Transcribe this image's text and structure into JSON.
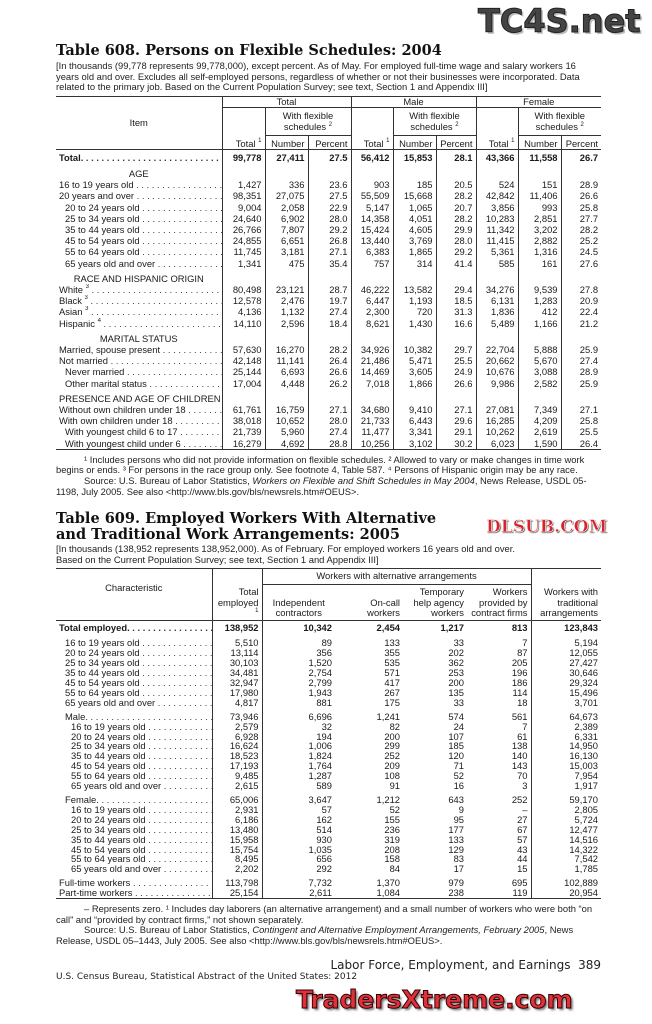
{
  "watermarks": {
    "top": "TC4S.net",
    "middle": "DLSUB.COM",
    "bottom": "TradersXtreme.com"
  },
  "table608": {
    "title": "Table 608. Persons on Flexible Schedules: 2004",
    "headnote": "[In thousands (99,778 represents 99,778,000), except percent. As of May. For employed full-time wage and salary workers 16 years old and over. Excludes all self-employed persons, regardless of whether or not their businesses were incorporated. Data related to the primary job. Based on the Current Population Survey;  see text, Section 1 and Appendix III]",
    "header": {
      "item": "Item",
      "groups": [
        "Total",
        "Male",
        "Female"
      ],
      "flex": "With flexible schedules",
      "flex_sup": "2",
      "total": "Total",
      "total_sup": "1",
      "number": "Number",
      "percent": "Percent"
    },
    "rows": [
      {
        "label": "Total.",
        "bold": true,
        "v": [
          "99,778",
          "27,411",
          "27.5",
          "56,412",
          "15,853",
          "28.1",
          "43,366",
          "11,558",
          "26.7"
        ]
      },
      {
        "heading": "AGE"
      },
      {
        "label": "16 to 19 years old",
        "v": [
          "1,427",
          "336",
          "23.6",
          "903",
          "185",
          "20.5",
          "524",
          "151",
          "28.9"
        ]
      },
      {
        "label": "20 years and over",
        "v": [
          "98,351",
          "27,075",
          "27.5",
          "55,509",
          "15,668",
          "28.2",
          "42,842",
          "11,406",
          "26.6"
        ]
      },
      {
        "label": "20 to 24 years old",
        "indent": 1,
        "v": [
          "9,004",
          "2,058",
          "22.9",
          "5,147",
          "1,065",
          "20.7",
          "3,856",
          "993",
          "25.8"
        ]
      },
      {
        "label": "25 to 34 years old",
        "indent": 1,
        "v": [
          "24,640",
          "6,902",
          "28.0",
          "14,358",
          "4,051",
          "28.2",
          "10,283",
          "2,851",
          "27.7"
        ]
      },
      {
        "label": "35 to 44 years old",
        "indent": 1,
        "v": [
          "26,766",
          "7,807",
          "29.2",
          "15,424",
          "4,605",
          "29.9",
          "11,342",
          "3,202",
          "28.2"
        ]
      },
      {
        "label": "45 to 54 years old",
        "indent": 1,
        "v": [
          "24,855",
          "6,651",
          "26.8",
          "13,440",
          "3,769",
          "28.0",
          "11,415",
          "2,882",
          "25.2"
        ]
      },
      {
        "label": "55 to 64 years old",
        "indent": 1,
        "v": [
          "11,745",
          "3,181",
          "27.1",
          "6,383",
          "1,865",
          "29.2",
          "5,361",
          "1,316",
          "24.5"
        ]
      },
      {
        "label": "65 years old and over",
        "indent": 1,
        "v": [
          "1,341",
          "475",
          "35.4",
          "757",
          "314",
          "41.4",
          "585",
          "161",
          "27.6"
        ]
      },
      {
        "heading": "RACE AND HISPANIC ORIGIN"
      },
      {
        "label": "White",
        "sup": "3",
        "v": [
          "80,498",
          "23,121",
          "28.7",
          "46,222",
          "13,582",
          "29.4",
          "34,276",
          "9,539",
          "27.8"
        ]
      },
      {
        "label": "Black",
        "sup": "3",
        "v": [
          "12,578",
          "2,476",
          "19.7",
          "6,447",
          "1,193",
          "18.5",
          "6,131",
          "1,283",
          "20.9"
        ]
      },
      {
        "label": "Asian",
        "sup": "3",
        "v": [
          "4,136",
          "1,132",
          "27.4",
          "2,300",
          "720",
          "31.3",
          "1,836",
          "412",
          "22.4"
        ]
      },
      {
        "label": "Hispanic",
        "sup": "4",
        "v": [
          "14,110",
          "2,596",
          "18.4",
          "8,621",
          "1,430",
          "16.6",
          "5,489",
          "1,166",
          "21.2"
        ]
      },
      {
        "heading": "MARITAL STATUS"
      },
      {
        "label": "Married, spouse present",
        "v": [
          "57,630",
          "16,270",
          "28.2",
          "34,926",
          "10,382",
          "29.7",
          "22,704",
          "5,888",
          "25.9"
        ]
      },
      {
        "label": "Not married",
        "v": [
          "42,148",
          "11,141",
          "26.4",
          "21,486",
          "5,471",
          "25.5",
          "20,662",
          "5,670",
          "27.4"
        ]
      },
      {
        "label": "Never married",
        "indent": 1,
        "v": [
          "25,144",
          "6,693",
          "26.6",
          "14,469",
          "3,605",
          "24.9",
          "10,676",
          "3,088",
          "28.9"
        ]
      },
      {
        "label": "Other marital status",
        "indent": 1,
        "v": [
          "17,004",
          "4,448",
          "26.2",
          "7,018",
          "1,866",
          "26.6",
          "9,986",
          "2,582",
          "25.9"
        ]
      },
      {
        "heading": "PRESENCE AND AGE OF CHILDREN"
      },
      {
        "label": "Without own children under 18",
        "v": [
          "61,761",
          "16,759",
          "27.1",
          "34,680",
          "9,410",
          "27.1",
          "27,081",
          "7,349",
          "27.1"
        ]
      },
      {
        "label": "With own children under 18",
        "v": [
          "38,018",
          "10,652",
          "28.0",
          "21,733",
          "6,443",
          "29.6",
          "16,285",
          "4,209",
          "25.8"
        ]
      },
      {
        "label": "With youngest child 6 to 17",
        "indent": 1,
        "v": [
          "21,739",
          "5,960",
          "27.4",
          "11,477",
          "3,341",
          "29.1",
          "10,262",
          "2,619",
          "25.5"
        ]
      },
      {
        "label": "With youngest child under 6",
        "indent": 1,
        "v": [
          "16,279",
          "4,692",
          "28.8",
          "10,256",
          "3,102",
          "30.2",
          "6,023",
          "1,590",
          "26.4"
        ]
      }
    ],
    "footnote": "¹ Includes persons who did not provide information on flexible schedules. ² Allowed to vary or make changes in time work begins or ends. ³ For persons in the race group only. See footnote 4, Table 587. ⁴ Persons of Hispanic origin may be any race.",
    "source_prefix": "Source: U.S. Bureau of Labor Statistics, ",
    "source_title": "Workers on Flexible and Shift Schedules in May 2004",
    "source_suffix": ", News Release, USDL 05-1198, July 2005. See also <http://www.bls.gov/bls/newsrels.htm#OEUS>."
  },
  "table609": {
    "title": "Table 609. Employed Workers With Alternative and Traditional Work Arrangements: 2005",
    "headnote": "[In thousands (138,952 represents 138,952,000). As of February. For employed workers 16 years old and over. Based on the Current Population Survey; see text, Section 1 and Appendix III]",
    "header": {
      "characteristic": "Characteristic",
      "alt_group": "Workers with alternative arrangements",
      "total": "Total employed",
      "total_sup": "1",
      "independent": "Independent contractors",
      "oncall": "On-call workers",
      "temp": "Temporary help agency workers",
      "contract": "Workers provided by contract firms",
      "traditional": "Workers with traditional arrangements"
    },
    "rows": [
      {
        "label": "Total employed.",
        "bold": true,
        "v": [
          "138,952",
          "10,342",
          "2,454",
          "1,217",
          "813",
          "123,843"
        ]
      },
      {
        "spacer": true
      },
      {
        "label": "16 to 19 years old",
        "indent": 1,
        "v": [
          "5,510",
          "89",
          "133",
          "33",
          "7",
          "5,194"
        ]
      },
      {
        "label": "20 to 24 years old",
        "indent": 1,
        "v": [
          "13,114",
          "356",
          "355",
          "202",
          "87",
          "12,055"
        ]
      },
      {
        "label": "25 to 34 years old",
        "indent": 1,
        "v": [
          "30,103",
          "1,520",
          "535",
          "362",
          "205",
          "27,427"
        ]
      },
      {
        "label": "35 to 44 years old",
        "indent": 1,
        "v": [
          "34,481",
          "2,754",
          "571",
          "253",
          "196",
          "30,646"
        ]
      },
      {
        "label": "45 to 54 years old",
        "indent": 1,
        "v": [
          "32,947",
          "2,799",
          "417",
          "200",
          "186",
          "29,324"
        ]
      },
      {
        "label": "55 to 64 years old",
        "indent": 1,
        "v": [
          "17,980",
          "1,943",
          "267",
          "135",
          "114",
          "15,496"
        ]
      },
      {
        "label": "65 years old and over",
        "indent": 1,
        "v": [
          "4,817",
          "881",
          "175",
          "33",
          "18",
          "3,701"
        ]
      },
      {
        "spacer": true
      },
      {
        "label": "Male.",
        "indent": 1,
        "v": [
          "73,946",
          "6,696",
          "1,241",
          "574",
          "561",
          "64,673"
        ]
      },
      {
        "label": "16 to 19 years old",
        "indent": 2,
        "v": [
          "2,579",
          "32",
          "82",
          "24",
          "7",
          "2,389"
        ]
      },
      {
        "label": "20 to 24 years old",
        "indent": 2,
        "v": [
          "6,928",
          "194",
          "200",
          "107",
          "61",
          "6,331"
        ]
      },
      {
        "label": "25 to 34 years old",
        "indent": 2,
        "v": [
          "16,624",
          "1,006",
          "299",
          "185",
          "138",
          "14,950"
        ]
      },
      {
        "label": "35 to 44 years old",
        "indent": 2,
        "v": [
          "18,523",
          "1,824",
          "252",
          "120",
          "140",
          "16,130"
        ]
      },
      {
        "label": "45 to 54 years old",
        "indent": 2,
        "v": [
          "17,193",
          "1,764",
          "209",
          "71",
          "143",
          "15,003"
        ]
      },
      {
        "label": "55 to 64 years old",
        "indent": 2,
        "v": [
          "9,485",
          "1,287",
          "108",
          "52",
          "70",
          "7,954"
        ]
      },
      {
        "label": "65 years old and over",
        "indent": 2,
        "v": [
          "2,615",
          "589",
          "91",
          "16",
          "3",
          "1,917"
        ]
      },
      {
        "spacer": true
      },
      {
        "label": "Female.",
        "indent": 1,
        "v": [
          "65,006",
          "3,647",
          "1,212",
          "643",
          "252",
          "59,170"
        ]
      },
      {
        "label": "16 to 19 years old",
        "indent": 2,
        "v": [
          "2,931",
          "57",
          "52",
          "9",
          "–",
          "2,805"
        ]
      },
      {
        "label": "20 to 24 years old",
        "indent": 2,
        "v": [
          "6,186",
          "162",
          "155",
          "95",
          "27",
          "5,724"
        ]
      },
      {
        "label": "25 to 34 years old",
        "indent": 2,
        "v": [
          "13,480",
          "514",
          "236",
          "177",
          "67",
          "12,477"
        ]
      },
      {
        "label": "35 to 44 years old",
        "indent": 2,
        "v": [
          "15,958",
          "930",
          "319",
          "133",
          "57",
          "14,516"
        ]
      },
      {
        "label": "45 to 54 years old",
        "indent": 2,
        "v": [
          "15,754",
          "1,035",
          "208",
          "129",
          "43",
          "14,322"
        ]
      },
      {
        "label": "55 to 64 years old",
        "indent": 2,
        "v": [
          "8,495",
          "656",
          "158",
          "83",
          "44",
          "7,542"
        ]
      },
      {
        "label": "65 years old and over",
        "indent": 2,
        "v": [
          "2,202",
          "292",
          "84",
          "17",
          "15",
          "1,785"
        ]
      },
      {
        "spacer": true
      },
      {
        "label": "Full-time workers",
        "v": [
          "113,798",
          "7,732",
          "1,370",
          "979",
          "695",
          "102,889"
        ]
      },
      {
        "label": "Part-time workers",
        "v": [
          "25,154",
          "2,611",
          "1,084",
          "238",
          "119",
          "20,954"
        ]
      }
    ],
    "footnote": "– Represents zero. ¹ Includes day laborers (an alternative arrangement) and a small number of workers who were both “on call” and “provided by contract firms,” not shown separately.",
    "source_prefix": "Source: U.S. Bureau of Labor Statistics, ",
    "source_title": "Contingent and Alternative Employment Arrangements, February 2005",
    "source_suffix": ", News Release, USDL 05–1443, July 2005. See also <http://www.bls.gov/bls/newsrels.htm#OEUS>."
  },
  "footer": {
    "section": "Labor Force, Employment, and Earnings",
    "page": "389",
    "publication": "U.S. Census Bureau, Statistical Abstract of the United States: 2012"
  }
}
